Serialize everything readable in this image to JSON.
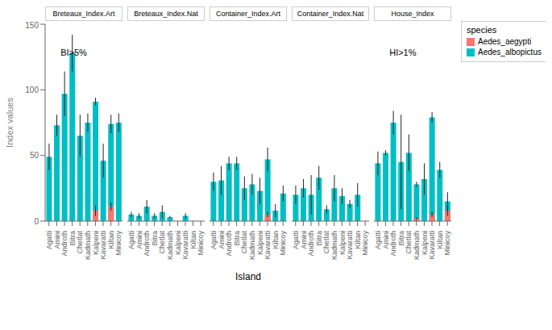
{
  "chart_data": [
    {
      "type": "bar",
      "title": "Breteaux_Index.Art",
      "ylabel": "Index values",
      "annotation": "BI>5%",
      "grid": false,
      "categories": [
        "Agatti",
        "Amini",
        "Androth",
        "Bitra",
        "Chetlat",
        "Kadmath",
        "Kalpeni",
        "Kavaratti",
        "Kiltan",
        "Minicoy"
      ],
      "ylim": [
        0,
        150
      ],
      "yticks": [
        0,
        50,
        100,
        150
      ],
      "series": [
        {
          "name": "Aedes_albopictus",
          "color": "#00BFC4",
          "values": [
            49,
            73,
            97,
            128,
            65,
            75,
            91,
            46,
            74,
            75
          ],
          "errors": [
            10,
            8,
            17,
            14,
            16,
            7,
            3,
            13,
            7,
            7
          ]
        },
        {
          "name": "Aedes_aegypti",
          "color": "#F8766D",
          "values": [
            0,
            0,
            0,
            0,
            0,
            0,
            8,
            0,
            11,
            0
          ],
          "errors": [
            null,
            null,
            null,
            null,
            null,
            null,
            4,
            null,
            3,
            null
          ]
        }
      ]
    },
    {
      "type": "bar",
      "title": "Breteaux_Index.Nat",
      "grid": false,
      "tick_labels": "x",
      "categories": [
        "Agatti",
        "Amini",
        "Androth",
        "Bitra",
        "Chetlat",
        "Kadmath",
        "Kalpeni",
        "Kavaratti",
        "Kiltan",
        "Minicoy"
      ],
      "ylim": [
        0,
        150
      ],
      "yticks": [
        0,
        50,
        100,
        150
      ],
      "series": [
        {
          "name": "Aedes_albopictus",
          "color": "#00BFC4",
          "values": [
            5,
            4,
            11,
            4,
            7,
            3,
            0,
            4,
            0,
            0
          ],
          "errors": [
            2,
            2,
            5,
            2,
            5,
            1,
            0,
            2,
            0,
            0
          ]
        },
        {
          "name": "Aedes_aegypti",
          "color": "#F8766D",
          "values": [
            0,
            0,
            0,
            0,
            0,
            0,
            0,
            0,
            0,
            0
          ],
          "errors": [
            null,
            null,
            null,
            null,
            null,
            null,
            null,
            null,
            null,
            null
          ]
        }
      ]
    },
    {
      "type": "bar",
      "title": "Container_Index.Art",
      "xlabel": "Island",
      "grid": false,
      "tick_labels": "x",
      "categories": [
        "Agatti",
        "Amini",
        "Androth",
        "Bitra",
        "Chetlat",
        "Kadmath",
        "Kalpeni",
        "Kavaratti",
        "Kiltan",
        "Minicoy"
      ],
      "ylim": [
        0,
        150
      ],
      "yticks": [
        0,
        50,
        100,
        150
      ],
      "series": [
        {
          "name": "Aedes_albopictus",
          "color": "#00BFC4",
          "values": [
            30,
            31,
            44,
            44,
            25,
            28,
            23,
            47,
            8,
            21
          ],
          "errors": [
            7,
            11,
            5,
            5,
            9,
            8,
            10,
            9,
            5,
            6
          ]
        },
        {
          "name": "Aedes_aegypti",
          "color": "#F8766D",
          "values": [
            0,
            0,
            0,
            0,
            0,
            0,
            0,
            5,
            0,
            0
          ],
          "errors": [
            null,
            null,
            null,
            null,
            null,
            null,
            null,
            2,
            null,
            null
          ]
        }
      ]
    },
    {
      "type": "bar",
      "title": "Container_Index.Nat",
      "grid": false,
      "tick_labels": "x",
      "categories": [
        "Agatti",
        "Amini",
        "Androth",
        "Bitra",
        "Chetlat",
        "Kadmath",
        "Kalpeni",
        "Kavaratti",
        "Kiltan",
        "Minicoy"
      ],
      "ylim": [
        0,
        150
      ],
      "yticks": [
        0,
        50,
        100,
        150
      ],
      "series": [
        {
          "name": "Aedes_albopictus",
          "color": "#00BFC4",
          "values": [
            20,
            25,
            20,
            33,
            9,
            25,
            19,
            13,
            20,
            0
          ],
          "errors": [
            7,
            7,
            15,
            9,
            3,
            10,
            6,
            3,
            9,
            0
          ]
        },
        {
          "name": "Aedes_aegypti",
          "color": "#F8766D",
          "values": [
            0,
            0,
            0,
            0,
            0,
            0,
            0,
            0,
            0,
            0
          ],
          "errors": [
            null,
            null,
            null,
            null,
            null,
            null,
            null,
            null,
            null,
            null
          ]
        }
      ]
    },
    {
      "type": "bar",
      "title": "House_Index",
      "annotation": "HI>1%",
      "grid": false,
      "tick_labels": "x",
      "legend": "right",
      "legend_title": "species",
      "categories": [
        "Agatti",
        "Amini",
        "Androth",
        "Bitra",
        "Chetlat",
        "Kadmath",
        "Kalpeni",
        "Kavaratti",
        "Kiltan",
        "Minicoy"
      ],
      "ylim": [
        0,
        150
      ],
      "yticks": [
        0,
        50,
        100,
        150
      ],
      "series": [
        {
          "name": "Aedes_albopictus",
          "color": "#00BFC4",
          "values": [
            44,
            52,
            75,
            45,
            52,
            28,
            32,
            79,
            39,
            15
          ],
          "errors": [
            9,
            2,
            9,
            36,
            14,
            2,
            12,
            4,
            6,
            7
          ]
        },
        {
          "name": "Aedes_aegypti",
          "color": "#F8766D",
          "values": [
            0,
            0,
            0,
            0,
            0,
            2,
            0,
            5,
            0,
            8
          ],
          "errors": [
            null,
            null,
            null,
            null,
            null,
            1,
            null,
            2,
            null,
            4
          ]
        }
      ]
    }
  ]
}
